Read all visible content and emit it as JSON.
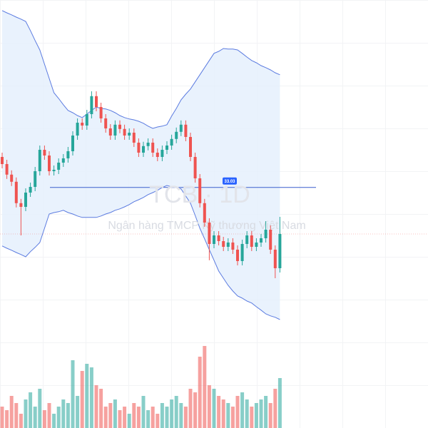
{
  "chart_data": {
    "type": "candlestick",
    "title": "TCB · 1D",
    "subtitle": "Ngân hàng TMCP Kỹ thương Việt Nam",
    "ylim": [
      28,
      39.6
    ],
    "vlim": [
      0,
      120
    ],
    "up_color": "#26a69a",
    "down_color": "#ef5350",
    "band_color": "#5b7be0",
    "band_fill": "#e3effc",
    "open": [
      34.1,
      33.85,
      33.48,
      33.23,
      32.48,
      32.35,
      32.85,
      33.05,
      33.6,
      34.35,
      34.15,
      33.6,
      33.65,
      33.9,
      34.05,
      34.3,
      34.85,
      35.3,
      35.2,
      35.6,
      36.23,
      35.85,
      35.45,
      35.1,
      34.85,
      35.23,
      35.08,
      34.85,
      34.95,
      34.6,
      34.25,
      34.48,
      34.6,
      34.25,
      34.1,
      34.35,
      34.5,
      34.73,
      34.98,
      35.23,
      34.8,
      34.1,
      33.35,
      32.48,
      31.8,
      31.05,
      31.35,
      31.15,
      30.95,
      31.1,
      30.85,
      30.45,
      31.05,
      31.35,
      30.95,
      31.1,
      31.25,
      31.55,
      30.85,
      30.2
    ],
    "high": [
      34.25,
      34.0,
      33.63,
      33.38,
      32.63,
      33.0,
      33.2,
      33.75,
      34.5,
      34.5,
      34.3,
      33.8,
      34.05,
      34.2,
      34.45,
      35.0,
      35.45,
      35.45,
      35.75,
      36.4,
      36.4,
      36.0,
      35.6,
      35.25,
      35.38,
      35.38,
      35.23,
      35.1,
      35.1,
      34.75,
      34.63,
      34.75,
      34.75,
      34.4,
      34.5,
      34.65,
      34.88,
      35.13,
      35.38,
      35.38,
      34.95,
      34.25,
      33.5,
      32.63,
      31.95,
      31.5,
      31.5,
      31.3,
      31.25,
      31.25,
      31.0,
      31.2,
      31.5,
      31.5,
      31.25,
      31.4,
      31.85,
      31.7,
      31.0,
      32.0
    ],
    "low": [
      33.7,
      33.33,
      33.08,
      32.33,
      31.35,
      32.2,
      32.7,
      32.9,
      33.45,
      34.0,
      33.45,
      33.45,
      33.5,
      33.75,
      33.9,
      34.15,
      34.7,
      35.05,
      35.05,
      35.45,
      35.7,
      35.3,
      34.95,
      34.7,
      34.7,
      34.93,
      34.7,
      34.7,
      34.45,
      34.1,
      34.1,
      34.33,
      34.1,
      33.95,
      33.95,
      34.2,
      34.35,
      34.58,
      34.83,
      34.65,
      33.95,
      33.2,
      32.33,
      31.65,
      30.48,
      30.9,
      31.0,
      30.8,
      30.8,
      30.7,
      30.3,
      30.3,
      30.9,
      30.8,
      30.8,
      30.95,
      31.1,
      30.7,
      29.85,
      30.05
    ],
    "close": [
      33.85,
      33.48,
      33.23,
      32.48,
      32.35,
      32.85,
      33.05,
      33.6,
      34.35,
      34.15,
      33.6,
      33.65,
      33.9,
      34.05,
      34.3,
      34.85,
      35.3,
      35.2,
      35.6,
      36.23,
      35.85,
      35.45,
      35.1,
      34.85,
      35.23,
      35.08,
      34.85,
      34.95,
      34.6,
      34.25,
      34.48,
      34.6,
      34.25,
      34.1,
      34.35,
      34.5,
      34.73,
      34.98,
      35.23,
      34.8,
      34.1,
      33.35,
      32.48,
      31.8,
      31.05,
      31.35,
      31.15,
      30.95,
      31.1,
      30.85,
      30.45,
      31.05,
      31.35,
      30.95,
      31.1,
      31.25,
      31.55,
      30.85,
      30.2,
      31.4
    ],
    "volume": [
      30,
      25,
      45,
      35,
      20,
      40,
      50,
      30,
      55,
      25,
      35,
      20,
      30,
      40,
      35,
      95,
      45,
      80,
      90,
      85,
      60,
      55,
      30,
      35,
      40,
      25,
      30,
      20,
      35,
      30,
      45,
      25,
      30,
      20,
      35,
      30,
      40,
      45,
      35,
      30,
      55,
      50,
      100,
      115,
      60,
      55,
      45,
      40,
      35,
      30,
      45,
      50,
      40,
      30,
      35,
      40,
      45,
      35,
      55,
      70
    ],
    "bands": {
      "upper": [
        39.23,
        39.15,
        39.08,
        39.0,
        38.93,
        38.85,
        38.53,
        38.18,
        37.85,
        37.35,
        36.85,
        36.35,
        36.15,
        35.93,
        35.73,
        35.65,
        35.55,
        35.48,
        35.6,
        35.73,
        35.85,
        35.8,
        35.78,
        35.73,
        35.65,
        35.55,
        35.48,
        35.43,
        35.4,
        35.35,
        35.28,
        35.18,
        35.1,
        35.15,
        35.18,
        35.23,
        35.53,
        35.8,
        36.1,
        36.3,
        36.48,
        36.73,
        36.98,
        37.23,
        37.48,
        37.73,
        37.8,
        37.9,
        37.88,
        37.88,
        37.85,
        37.73,
        37.6,
        37.48,
        37.4,
        37.3,
        37.23,
        37.15,
        37.05,
        36.98
      ],
      "lower": [
        30.98,
        30.9,
        30.83,
        30.75,
        30.68,
        30.6,
        30.78,
        30.93,
        31.1,
        31.6,
        32.1,
        32.15,
        32.18,
        32.23,
        32.15,
        32.1,
        32.03,
        31.98,
        31.98,
        31.98,
        31.98,
        32.03,
        32.1,
        32.15,
        32.23,
        32.28,
        32.35,
        32.43,
        32.53,
        32.6,
        32.68,
        32.78,
        32.85,
        32.93,
        33.03,
        33.1,
        33.05,
        33.03,
        32.98,
        32.73,
        32.48,
        32.05,
        31.6,
        31.23,
        30.85,
        30.48,
        30.1,
        29.85,
        29.6,
        29.4,
        29.23,
        29.15,
        29.05,
        28.98,
        28.85,
        28.73,
        28.6,
        28.53,
        28.48,
        28.4
      ]
    },
    "price_line": 33.03
  }
}
